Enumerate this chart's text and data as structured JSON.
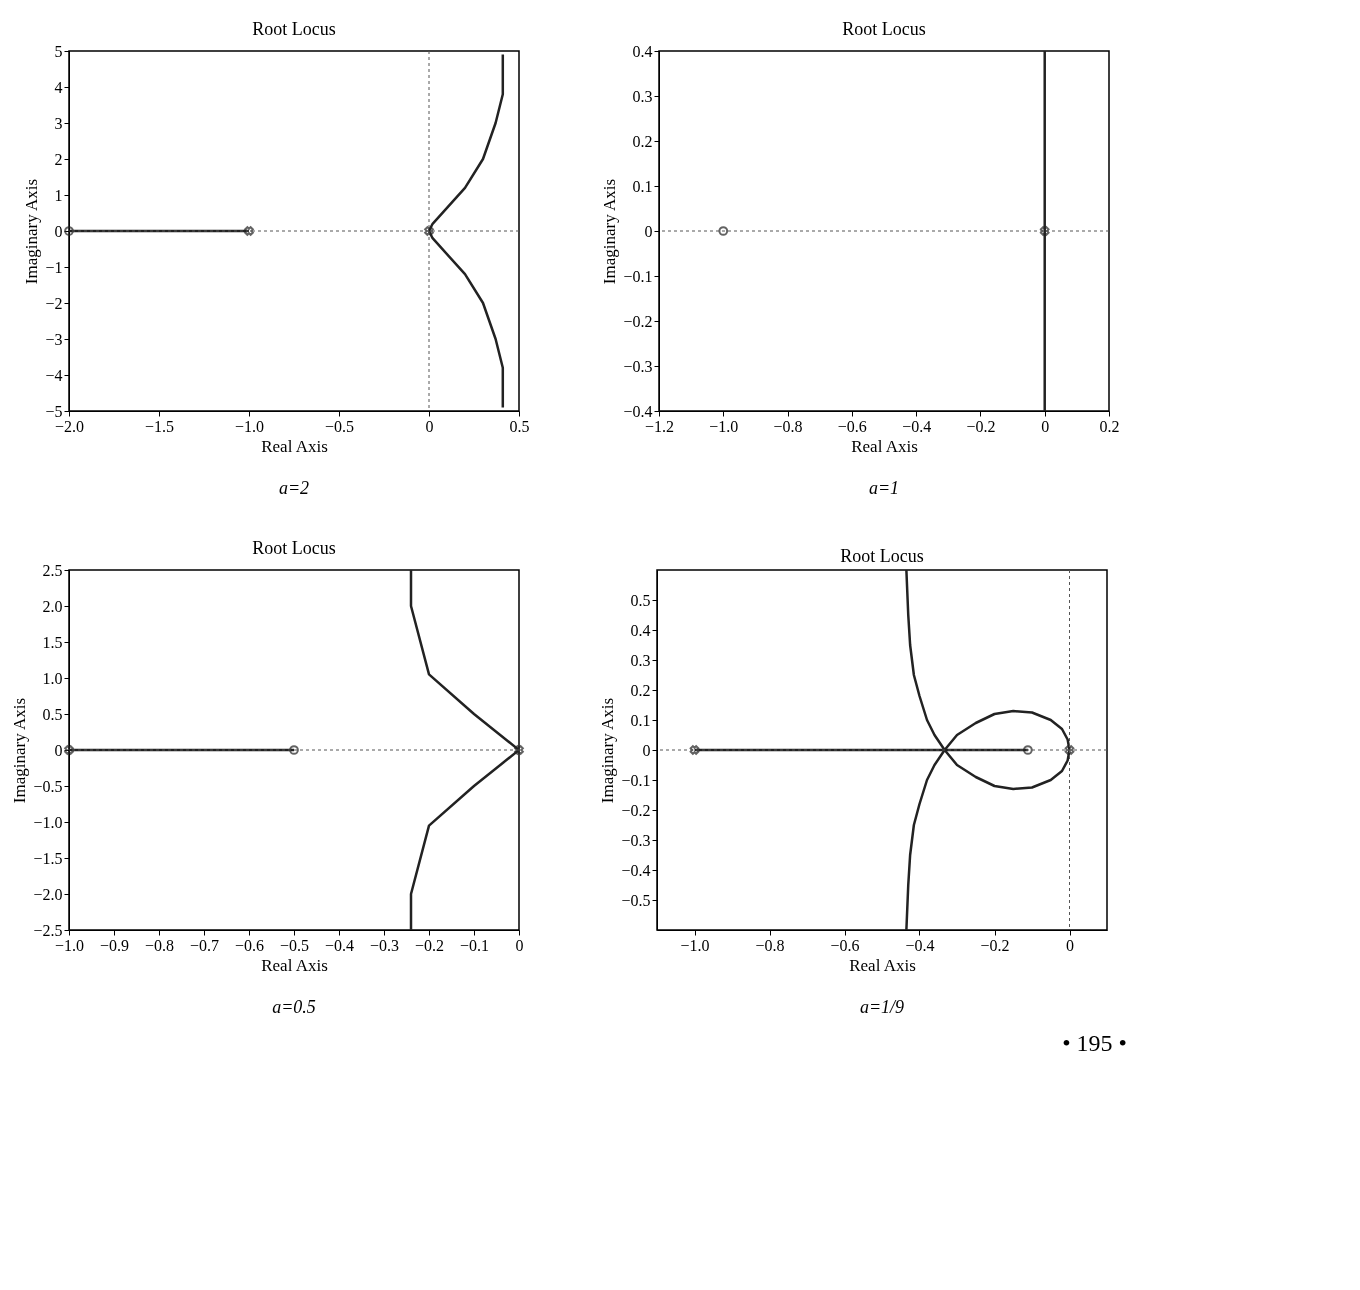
{
  "chart_data": [
    {
      "type": "line",
      "title": "Root Locus",
      "xlabel": "Real Axis",
      "ylabel": "Imaginary Axis",
      "annotations": [
        "a=2"
      ],
      "xlim": [
        -2.0,
        0.5
      ],
      "xticks": [
        {
          "value": -2.0,
          "label": "−2.0"
        },
        {
          "value": -1.5,
          "label": "−1.5"
        },
        {
          "value": -1.0,
          "label": "−1.0"
        },
        {
          "value": -0.5,
          "label": "−0.5"
        },
        0,
        0.5
      ],
      "ylim": [
        -5,
        5
      ],
      "yticks": [
        {
          "value": -5,
          "label": "−5"
        },
        {
          "value": -4,
          "label": "−4"
        },
        {
          "value": -3,
          "label": "−3"
        },
        {
          "value": -2,
          "label": "−2"
        },
        {
          "value": -1,
          "label": "−1"
        },
        0,
        1,
        2,
        3,
        4,
        5
      ],
      "grid": false,
      "ref_lines": [
        {
          "axis": "y",
          "value": 0,
          "line_style": "dashed",
          "color": "#555555"
        },
        {
          "axis": "x",
          "value": 0,
          "line_style": "dashed",
          "color": "#555555"
        }
      ],
      "series": [
        {
          "color": "#222222",
          "x": [
            -1.0,
            -2.0
          ],
          "values": [
            0,
            0
          ]
        },
        {
          "color": "#222222",
          "x": [
            0,
            0.02,
            0.2,
            0.3,
            0.37,
            0.41,
            0.41
          ],
          "values": [
            0,
            0.2,
            1.2,
            2.0,
            3.0,
            3.8,
            4.9
          ]
        },
        {
          "color": "#222222",
          "x": [
            0,
            0.02,
            0.2,
            0.3,
            0.37,
            0.41,
            0.41
          ],
          "values": [
            0,
            -0.2,
            -1.2,
            -2.0,
            -3.0,
            -3.8,
            -4.9
          ]
        },
        {
          "type": "scatter",
          "marker": "cross",
          "color": "#222222",
          "x": [
            0,
            -1.0
          ],
          "values": [
            0,
            0
          ]
        },
        {
          "type": "scatter",
          "marker": "circle",
          "color": "#222222",
          "x": [
            -2.0
          ],
          "values": [
            0
          ]
        }
      ]
    },
    {
      "type": "line",
      "title": "Root Locus",
      "xlabel": "Real Axis",
      "ylabel": "Imaginary Axis",
      "annotations": [
        "a=1"
      ],
      "xlim": [
        -1.2,
        0.2
      ],
      "xticks": [
        {
          "value": -1.2,
          "label": "−1.2"
        },
        {
          "value": -1.0,
          "label": "−1.0"
        },
        {
          "value": -0.8,
          "label": "−0.8"
        },
        {
          "value": -0.6,
          "label": "−0.6"
        },
        {
          "value": -0.4,
          "label": "−0.4"
        },
        {
          "value": -0.2,
          "label": "−0.2"
        },
        0,
        0.2
      ],
      "ylim": [
        -0.4,
        0.4
      ],
      "yticks": [
        {
          "value": -0.4,
          "label": "−0.4"
        },
        {
          "value": -0.3,
          "label": "−0.3"
        },
        {
          "value": -0.2,
          "label": "−0.2"
        },
        {
          "value": -0.1,
          "label": "−0.1"
        },
        0,
        0.1,
        0.2,
        0.3,
        0.4
      ],
      "grid": false,
      "ref_lines": [
        {
          "axis": "y",
          "value": 0,
          "line_style": "dashed",
          "color": "#555555"
        }
      ],
      "series": [
        {
          "color": "#222222",
          "x": [
            0,
            0,
            0
          ],
          "values": [
            0.4,
            0,
            -0.4
          ]
        },
        {
          "type": "scatter",
          "marker": "cross",
          "color": "#222222",
          "x": [
            0
          ],
          "values": [
            0
          ]
        },
        {
          "type": "scatter",
          "marker": "circle",
          "color": "#222222",
          "x": [
            -1.0
          ],
          "values": [
            0
          ]
        }
      ]
    },
    {
      "type": "line",
      "title": "Root Locus",
      "xlabel": "Real Axis",
      "ylabel": "Imaginary Axis",
      "annotations": [
        "a=0.5"
      ],
      "xlim": [
        -1.0,
        0
      ],
      "xticks": [
        {
          "value": -1.0,
          "label": "−1.0"
        },
        {
          "value": -0.9,
          "label": "−0.9"
        },
        {
          "value": -0.8,
          "label": "−0.8"
        },
        {
          "value": -0.7,
          "label": "−0.7"
        },
        {
          "value": -0.6,
          "label": "−0.6"
        },
        {
          "value": -0.5,
          "label": "−0.5"
        },
        {
          "value": -0.4,
          "label": "−0.4"
        },
        {
          "value": -0.3,
          "label": "−0.3"
        },
        {
          "value": -0.2,
          "label": "−0.2"
        },
        {
          "value": -0.1,
          "label": "−0.1"
        },
        0
      ],
      "ylim": [
        -2.5,
        2.5
      ],
      "yticks": [
        {
          "value": -2.5,
          "label": "−2.5"
        },
        {
          "value": -2.0,
          "label": "−2.0"
        },
        {
          "value": -1.5,
          "label": "−1.5"
        },
        {
          "value": -1.0,
          "label": "−1.0"
        },
        {
          "value": -0.5,
          "label": "−0.5"
        },
        0,
        0.5,
        {
          "value": 1.0,
          "label": "1.0"
        },
        1.5,
        {
          "value": 2.0,
          "label": "2.0"
        },
        2.5
      ],
      "grid": false,
      "ref_lines": [
        {
          "axis": "y",
          "value": 0,
          "line_style": "dashed",
          "color": "#555555"
        }
      ],
      "series": [
        {
          "color": "#222222",
          "x": [
            -1.0,
            -0.5
          ],
          "values": [
            0,
            0
          ]
        },
        {
          "color": "#222222",
          "x": [
            0,
            -0.03,
            -0.1,
            -0.2,
            -0.24,
            -0.24
          ],
          "values": [
            0,
            0.15,
            0.5,
            1.05,
            2.0,
            2.5
          ]
        },
        {
          "color": "#222222",
          "x": [
            0,
            -0.03,
            -0.1,
            -0.2,
            -0.24,
            -0.24
          ],
          "values": [
            0,
            -0.15,
            -0.5,
            -1.05,
            -2.0,
            -2.5
          ]
        },
        {
          "type": "scatter",
          "marker": "cross",
          "color": "#222222",
          "x": [
            -1.0,
            0
          ],
          "values": [
            0,
            0
          ]
        },
        {
          "type": "scatter",
          "marker": "circle",
          "color": "#222222",
          "x": [
            -0.5
          ],
          "values": [
            0
          ]
        }
      ]
    },
    {
      "type": "line",
      "title": "Root Locus",
      "xlabel": "Real Axis",
      "ylabel": "Imaginary Axis",
      "annotations": [
        "a=1/9",
        "• 195 •"
      ],
      "xlim": [
        -1.1,
        0.1
      ],
      "xticks": [
        {
          "value": -1.0,
          "label": "−1.0"
        },
        {
          "value": -0.8,
          "label": "−0.8"
        },
        {
          "value": -0.6,
          "label": "−0.6"
        },
        {
          "value": -0.4,
          "label": "−0.4"
        },
        {
          "value": -0.2,
          "label": "−0.2"
        },
        0
      ],
      "ylim": [
        -0.6,
        0.6
      ],
      "yticks": [
        {
          "value": -0.5,
          "label": "−0.5"
        },
        {
          "value": -0.4,
          "label": "−0.4"
        },
        {
          "value": -0.3,
          "label": "−0.3"
        },
        {
          "value": -0.2,
          "label": "−0.2"
        },
        {
          "value": -0.1,
          "label": "−0.1"
        },
        0,
        0.1,
        0.2,
        0.3,
        0.4,
        0.5
      ],
      "grid": false,
      "ref_lines": [
        {
          "axis": "y",
          "value": 0,
          "line_style": "dashed",
          "color": "#555555"
        },
        {
          "axis": "x",
          "value": 0,
          "line_style": "dashed",
          "color": "#555555"
        }
      ],
      "series": [
        {
          "color": "#222222",
          "x": [
            -1.0,
            -0.111
          ],
          "values": [
            0,
            0
          ]
        },
        {
          "color": "#222222",
          "x": [
            0,
            -0.005,
            -0.02,
            -0.05,
            -0.1,
            -0.15,
            -0.2,
            -0.25,
            -0.3,
            -0.333,
            -0.36,
            -0.38,
            -0.4,
            -0.415,
            -0.425,
            -0.43,
            -0.435
          ],
          "values": [
            0,
            0.035,
            0.07,
            0.1,
            0.125,
            0.13,
            0.12,
            0.09,
            0.05,
            0,
            -0.05,
            -0.1,
            -0.18,
            -0.25,
            -0.35,
            -0.45,
            -0.6
          ]
        },
        {
          "color": "#222222",
          "x": [
            0,
            -0.005,
            -0.02,
            -0.05,
            -0.1,
            -0.15,
            -0.2,
            -0.25,
            -0.3,
            -0.333,
            -0.36,
            -0.38,
            -0.4,
            -0.415,
            -0.425,
            -0.43,
            -0.435
          ],
          "values": [
            0,
            -0.035,
            -0.07,
            -0.1,
            -0.125,
            -0.13,
            -0.12,
            -0.09,
            -0.05,
            0,
            0.05,
            0.1,
            0.18,
            0.25,
            0.35,
            0.45,
            0.6
          ]
        },
        {
          "type": "scatter",
          "marker": "cross",
          "color": "#222222",
          "x": [
            -1.0,
            0
          ],
          "values": [
            0,
            0
          ]
        },
        {
          "type": "scatter",
          "marker": "circle",
          "color": "#222222",
          "x": [
            -0.111
          ],
          "values": [
            0
          ]
        }
      ]
    }
  ]
}
